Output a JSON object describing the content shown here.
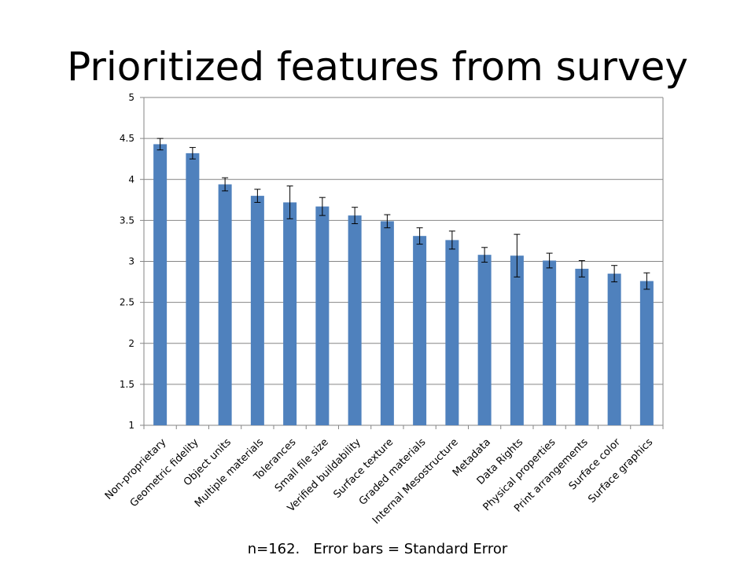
{
  "title": "Prioritized features from survey",
  "footnote": "n=162.   Error bars = Standard Error",
  "chart_data": {
    "type": "bar",
    "title": "Prioritized features from survey",
    "categories": [
      "Non-proprietary",
      "Geometric fidelity",
      "Object units",
      "Multiple materials",
      "Tolerances",
      "Small file size",
      "Verified buildability",
      "Surface texture",
      "Graded materials",
      "Internal Mesostructure",
      "Metadata",
      "Data Rights",
      "Physical properties",
      "Print arrangements",
      "Surface color",
      "Surface graphics"
    ],
    "values": [
      4.43,
      4.32,
      3.94,
      3.8,
      3.72,
      3.67,
      3.56,
      3.49,
      3.31,
      3.26,
      3.08,
      3.07,
      3.01,
      2.91,
      2.85,
      2.76
    ],
    "error": [
      0.07,
      0.07,
      0.08,
      0.08,
      0.2,
      0.11,
      0.1,
      0.08,
      0.1,
      0.11,
      0.09,
      0.26,
      0.09,
      0.1,
      0.1,
      0.1
    ],
    "ylim": [
      1,
      5
    ],
    "yticks": [
      "1",
      "1.5",
      "2",
      "2.5",
      "3",
      "3.5",
      "4",
      "4.5",
      "5"
    ],
    "ytick_values": [
      1,
      1.5,
      2,
      2.5,
      3,
      3.5,
      4,
      4.5,
      5
    ],
    "grid": true,
    "bar_color": "#4F81BD",
    "grid_color": "#868686",
    "xlabel": "",
    "ylabel": ""
  }
}
